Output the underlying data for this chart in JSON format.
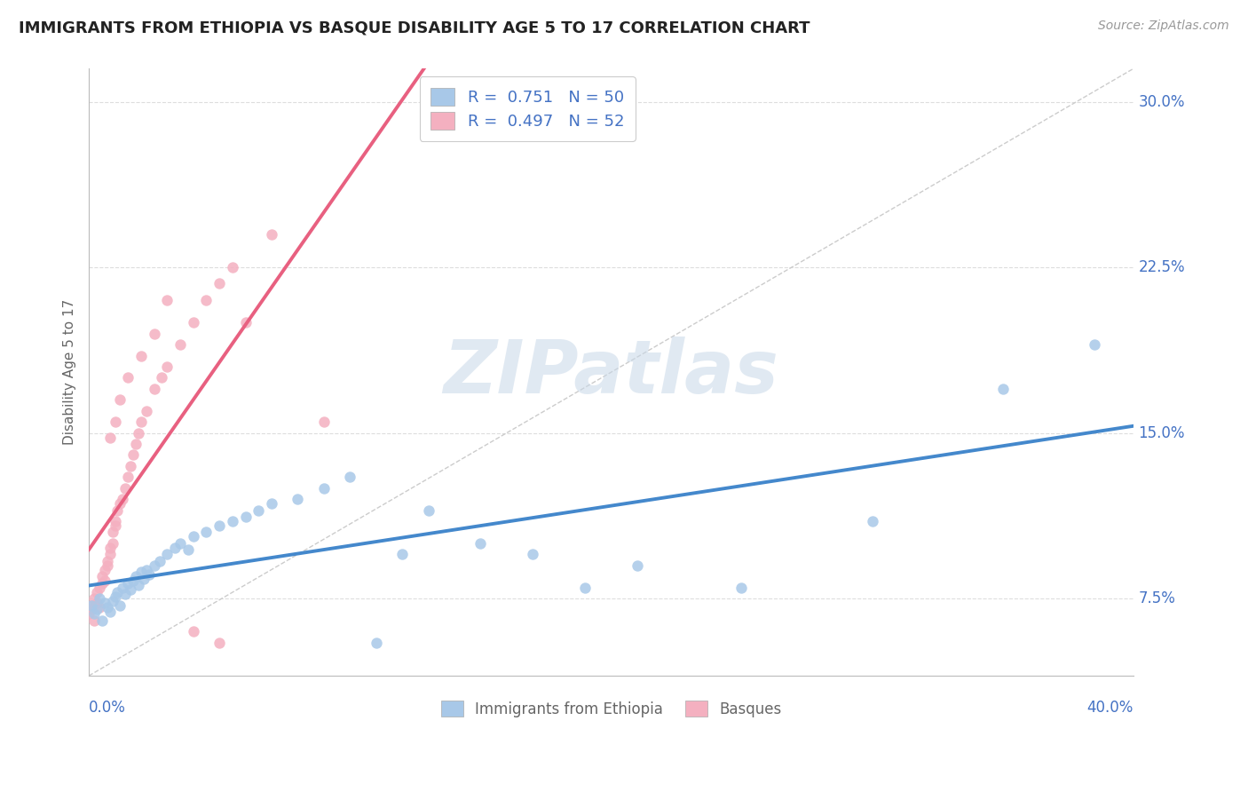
{
  "title": "IMMIGRANTS FROM ETHIOPIA VS BASQUE DISABILITY AGE 5 TO 17 CORRELATION CHART",
  "source": "Source: ZipAtlas.com",
  "ylabel_label": "Disability Age 5 to 17",
  "legend_label1": "Immigrants from Ethiopia",
  "legend_label2": "Basques",
  "r1": 0.751,
  "n1": 50,
  "r2": 0.497,
  "n2": 52,
  "color_blue_scatter": "#a8c8e8",
  "color_pink_scatter": "#f4b0c0",
  "color_blue_line": "#4488cc",
  "color_pink_line": "#e86080",
  "color_ref_line": "#cccccc",
  "color_axis_text": "#4472c4",
  "color_label_text": "#666666",
  "color_title": "#222222",
  "color_source": "#999999",
  "color_watermark": "#c8d8e8",
  "watermark_text": "ZIPatlas",
  "xmin": 0.0,
  "xmax": 0.4,
  "ymin": 0.04,
  "ymax": 0.315,
  "yticks": [
    0.075,
    0.15,
    0.225,
    0.3
  ],
  "ytick_labels": [
    "7.5%",
    "15.0%",
    "22.5%",
    "30.0%"
  ],
  "background": "#ffffff",
  "grid_color": "#dddddd",
  "blue_x": [
    0.001,
    0.002,
    0.003,
    0.004,
    0.005,
    0.006,
    0.007,
    0.008,
    0.009,
    0.01,
    0.011,
    0.012,
    0.013,
    0.014,
    0.015,
    0.016,
    0.017,
    0.018,
    0.019,
    0.02,
    0.021,
    0.022,
    0.023,
    0.025,
    0.027,
    0.03,
    0.033,
    0.035,
    0.038,
    0.04,
    0.045,
    0.05,
    0.055,
    0.06,
    0.065,
    0.07,
    0.08,
    0.09,
    0.1,
    0.11,
    0.12,
    0.13,
    0.15,
    0.17,
    0.19,
    0.21,
    0.25,
    0.3,
    0.35,
    0.385
  ],
  "blue_y": [
    0.072,
    0.068,
    0.07,
    0.075,
    0.065,
    0.073,
    0.071,
    0.069,
    0.074,
    0.076,
    0.078,
    0.072,
    0.08,
    0.077,
    0.082,
    0.079,
    0.083,
    0.085,
    0.081,
    0.087,
    0.084,
    0.088,
    0.086,
    0.09,
    0.092,
    0.095,
    0.098,
    0.1,
    0.097,
    0.103,
    0.105,
    0.108,
    0.11,
    0.112,
    0.115,
    0.118,
    0.12,
    0.125,
    0.13,
    0.055,
    0.095,
    0.115,
    0.1,
    0.095,
    0.08,
    0.09,
    0.08,
    0.11,
    0.17,
    0.19
  ],
  "pink_x": [
    0.0,
    0.001,
    0.001,
    0.002,
    0.002,
    0.003,
    0.003,
    0.004,
    0.004,
    0.005,
    0.005,
    0.006,
    0.006,
    0.007,
    0.007,
    0.008,
    0.008,
    0.009,
    0.009,
    0.01,
    0.01,
    0.011,
    0.012,
    0.013,
    0.014,
    0.015,
    0.016,
    0.017,
    0.018,
    0.019,
    0.02,
    0.022,
    0.025,
    0.028,
    0.03,
    0.035,
    0.04,
    0.045,
    0.05,
    0.055,
    0.008,
    0.01,
    0.012,
    0.015,
    0.02,
    0.025,
    0.03,
    0.04,
    0.05,
    0.06,
    0.07,
    0.09
  ],
  "pink_y": [
    0.068,
    0.07,
    0.072,
    0.065,
    0.075,
    0.073,
    0.078,
    0.08,
    0.071,
    0.082,
    0.085,
    0.088,
    0.083,
    0.09,
    0.092,
    0.095,
    0.098,
    0.1,
    0.105,
    0.11,
    0.108,
    0.115,
    0.118,
    0.12,
    0.125,
    0.13,
    0.135,
    0.14,
    0.145,
    0.15,
    0.155,
    0.16,
    0.17,
    0.175,
    0.18,
    0.19,
    0.2,
    0.21,
    0.218,
    0.225,
    0.148,
    0.155,
    0.165,
    0.175,
    0.185,
    0.195,
    0.21,
    0.06,
    0.055,
    0.2,
    0.24,
    0.155
  ],
  "fig_width": 14.06,
  "fig_height": 8.92,
  "dpi": 100
}
